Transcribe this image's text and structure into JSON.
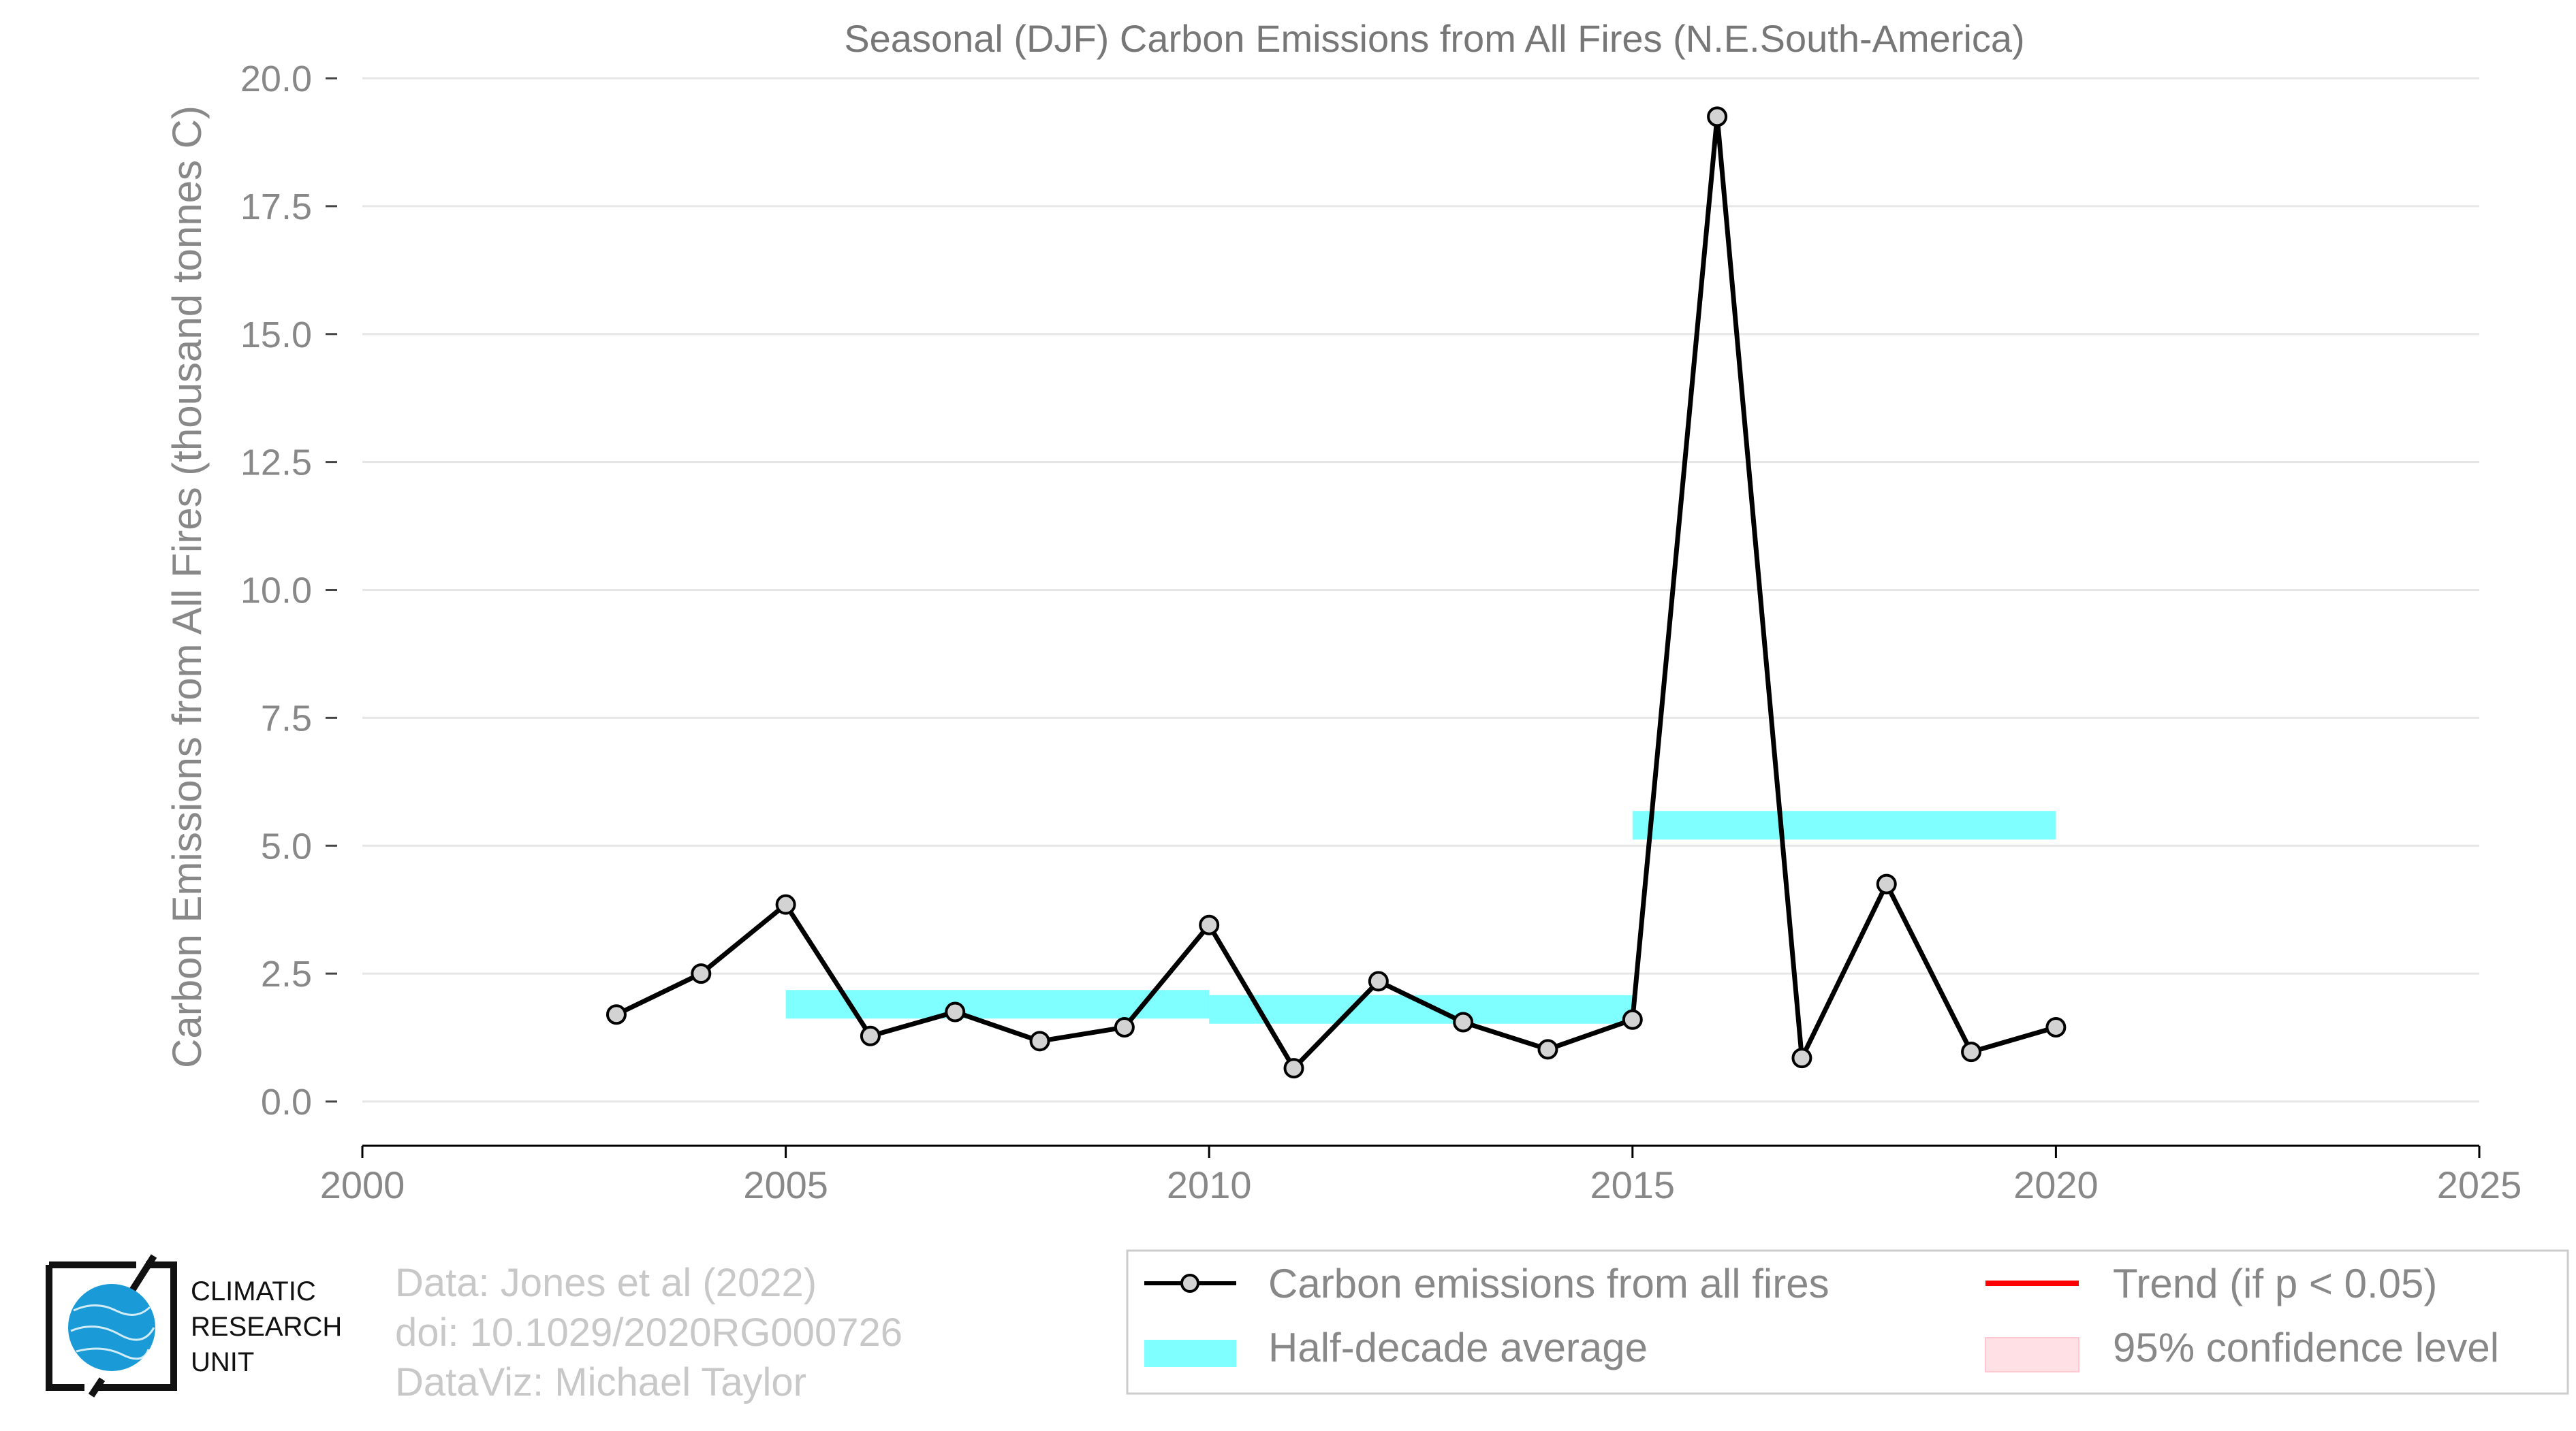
{
  "colors": {
    "line": "#000000",
    "marker_fill": "#d3d3d3",
    "half_decade": "#7fffff",
    "trend": "#ff0000",
    "confidence": "#ffe0e4",
    "grid": "#e6e6e6",
    "axis": "#000000"
  },
  "chart_data": {
    "type": "line",
    "title": "Seasonal (DJF) Carbon Emissions from All Fires (N.E.South-America)",
    "xlabel": "",
    "ylabel": "Carbon Emissions from All Fires (thousand tonnes C)",
    "xlim": [
      2000,
      2025
    ],
    "ylim": [
      0,
      20
    ],
    "xticks": [
      2000,
      2005,
      2010,
      2015,
      2020,
      2025
    ],
    "xtick_labels": [
      "2000",
      "2005",
      "2010",
      "2015",
      "2020",
      "2025"
    ],
    "yticks": [
      0,
      2.5,
      5,
      7.5,
      10,
      12.5,
      15,
      17.5,
      20
    ],
    "ytick_labels": [
      "0.0",
      "2.5",
      "5.0",
      "7.5",
      "10.0",
      "12.5",
      "15.0",
      "17.5",
      "20.0"
    ],
    "grid": "horizontal",
    "legend_position": "bottom-right",
    "series": [
      {
        "name": "Carbon emissions from all fires",
        "x": [
          2003,
          2004,
          2005,
          2006,
          2007,
          2008,
          2009,
          2010,
          2011,
          2012,
          2013,
          2014,
          2015,
          2016,
          2017,
          2018,
          2019,
          2020
        ],
        "values": [
          1.7,
          2.5,
          3.85,
          1.28,
          1.75,
          1.18,
          1.45,
          3.45,
          0.65,
          2.35,
          1.55,
          1.02,
          1.6,
          19.25,
          0.85,
          4.25,
          0.97,
          1.45
        ]
      }
    ],
    "half_decade_average": {
      "name": "Half-decade average",
      "segments": [
        {
          "x_start": 2005,
          "x_end": 2010,
          "value": 1.9
        },
        {
          "x_start": 2010,
          "x_end": 2015,
          "value": 1.8
        },
        {
          "x_start": 2015,
          "x_end": 2020,
          "value": 5.4
        }
      ]
    },
    "legend": [
      {
        "label": "Carbon emissions from all fires",
        "kind": "line-marker"
      },
      {
        "label": "Trend (if p < 0.05)",
        "kind": "trend-line"
      },
      {
        "label": "Half-decade average",
        "kind": "band"
      },
      {
        "label": "95% confidence level",
        "kind": "confidence"
      }
    ]
  },
  "credits": {
    "lines": [
      "Data: Jones et al (2022)",
      "doi: 10.1029/2020RG000726",
      "DataViz: Michael Taylor"
    ]
  },
  "logo": {
    "lines": [
      "CLIMATIC",
      "RESEARCH",
      "UNIT"
    ]
  }
}
